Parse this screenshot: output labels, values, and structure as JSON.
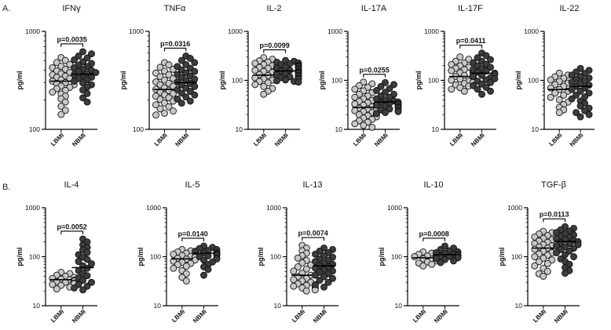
{
  "row_labels": [
    "A.",
    "B."
  ],
  "colors": {
    "lbmi_fill": "#c8c8c8",
    "nbmi_fill": "#3d3d3d",
    "point_stroke": "#111111"
  },
  "chart_data": [
    {
      "type": "scatter",
      "title": "IFNγ",
      "ylabel": "pg/ml",
      "scale": "log",
      "ylim": [
        100,
        1000
      ],
      "yticks": [
        100,
        1000
      ],
      "categories": [
        "LBMI",
        "NBMI"
      ],
      "annotation": "p=0.0035",
      "series": [
        {
          "name": "LBMI",
          "median": 310,
          "values": [
            540,
            505,
            480,
            460,
            440,
            425,
            410,
            395,
            380,
            370,
            360,
            350,
            340,
            330,
            320,
            310,
            300,
            292,
            285,
            276,
            268,
            260,
            250,
            240,
            230,
            218,
            205,
            190,
            172,
            156,
            142
          ]
        },
        {
          "name": "NBMI",
          "median": 365,
          "values": [
            620,
            590,
            560,
            535,
            512,
            490,
            470,
            452,
            438,
            425,
            412,
            400,
            390,
            380,
            370,
            360,
            350,
            340,
            330,
            320,
            310,
            298,
            285,
            270,
            252,
            232,
            210,
            190
          ]
        }
      ]
    },
    {
      "type": "scatter",
      "title": "TNFα",
      "ylabel": "pg/ml",
      "scale": "log",
      "ylim": [
        100,
        1000
      ],
      "yticks": [
        100,
        1000
      ],
      "categories": [
        "LBMI",
        "NBMI"
      ],
      "annotation": "p=0.0316",
      "series": [
        {
          "name": "LBMI",
          "median": 255,
          "values": [
            480,
            455,
            430,
            410,
            392,
            375,
            360,
            345,
            330,
            318,
            305,
            295,
            285,
            275,
            265,
            256,
            248,
            240,
            232,
            225,
            218,
            210,
            202,
            194,
            186,
            178,
            170,
            162,
            154,
            146,
            140
          ]
        },
        {
          "name": "NBMI",
          "median": 300,
          "values": [
            560,
            530,
            505,
            480,
            458,
            438,
            420,
            404,
            390,
            376,
            362,
            350,
            338,
            326,
            315,
            304,
            294,
            284,
            274,
            264,
            254,
            244,
            234,
            224,
            214,
            204,
            194,
            185
          ]
        }
      ]
    },
    {
      "type": "scatter",
      "title": "IL-2",
      "ylabel": "pg/ml",
      "scale": "log",
      "ylim": [
        10,
        1000
      ],
      "yticks": [
        10,
        100,
        1000
      ],
      "categories": [
        "LBMI",
        "NBMI"
      ],
      "annotation": "p=0.0099",
      "series": [
        {
          "name": "LBMI",
          "median": 128,
          "values": [
            290,
            270,
            250,
            235,
            222,
            210,
            200,
            192,
            184,
            176,
            168,
            160,
            152,
            145,
            138,
            131,
            125,
            119,
            113,
            107,
            101,
            95,
            89,
            82,
            75,
            68,
            60,
            52
          ]
        },
        {
          "name": "NBMI",
          "median": 155,
          "values": [
            255,
            245,
            235,
            226,
            218,
            210,
            203,
            196,
            190,
            184,
            178,
            172,
            166,
            160,
            155,
            150,
            145,
            140,
            135,
            130,
            126,
            122,
            118,
            114,
            110,
            106,
            102,
            98,
            95,
            92
          ]
        }
      ]
    },
    {
      "type": "scatter",
      "title": "IL-17A",
      "ylabel": "pg/ml",
      "scale": "log",
      "ylim": [
        10,
        1000
      ],
      "yticks": [
        10,
        100,
        1000
      ],
      "categories": [
        "LBMI",
        "NBMI"
      ],
      "annotation": "p=0.0255",
      "series": [
        {
          "name": "LBMI",
          "median": 28,
          "values": [
            92,
            85,
            78,
            72,
            66,
            61,
            56,
            52,
            48,
            45,
            42,
            39,
            37,
            35,
            33,
            31,
            29,
            28,
            27,
            26,
            25,
            24,
            23,
            22,
            21,
            20,
            19,
            18,
            17,
            16,
            15,
            14,
            13,
            12,
            11
          ]
        },
        {
          "name": "NBMI",
          "median": 36,
          "values": [
            90,
            82,
            75,
            68,
            62,
            57,
            52,
            48,
            45,
            42,
            40,
            38,
            36,
            35,
            34,
            33,
            32,
            31,
            30,
            29,
            28,
            27,
            26,
            25,
            24,
            23,
            22,
            21
          ]
        }
      ]
    },
    {
      "type": "scatter",
      "title": "IL-17F",
      "ylabel": "pg/ml",
      "scale": "log",
      "ylim": [
        10,
        1000
      ],
      "yticks": [
        10,
        100,
        1000
      ],
      "categories": [
        "LBMI",
        "NBMI"
      ],
      "annotation": "p=0.0411",
      "series": [
        {
          "name": "LBMI",
          "median": 120,
          "values": [
            300,
            270,
            245,
            225,
            210,
            198,
            186,
            176,
            166,
            158,
            150,
            143,
            137,
            131,
            126,
            121,
            116,
            111,
            106,
            101,
            96,
            91,
            86,
            81,
            76,
            71,
            66,
            60
          ]
        },
        {
          "name": "NBMI",
          "median": 140,
          "values": [
            360,
            320,
            290,
            265,
            245,
            228,
            212,
            198,
            185,
            174,
            164,
            155,
            147,
            140,
            133,
            126,
            120,
            114,
            108,
            102,
            96,
            90,
            84,
            78,
            72,
            66,
            60,
            52
          ]
        }
      ]
    },
    {
      "type": "scatter",
      "title": "IL-22",
      "ylabel": "pg/ml",
      "scale": "log",
      "ylim": [
        10,
        1000
      ],
      "yticks": [
        10,
        100,
        1000
      ],
      "categories": [
        "LBMI",
        "NBMI"
      ],
      "annotation": "",
      "series": [
        {
          "name": "LBMI",
          "median": 65,
          "values": [
            140,
            128,
            118,
            110,
            102,
            95,
            88,
            82,
            76,
            70,
            65,
            60,
            55,
            50,
            45,
            40,
            36,
            32,
            28,
            25,
            22
          ]
        },
        {
          "name": "NBMI",
          "median": 75,
          "values": [
            175,
            160,
            148,
            138,
            128,
            120,
            112,
            105,
            98,
            92,
            86,
            80,
            75,
            70,
            65,
            60,
            55,
            50,
            46,
            42,
            38,
            34,
            30,
            27,
            24,
            22,
            20,
            18
          ]
        }
      ]
    },
    {
      "type": "scatter",
      "title": "IL-4",
      "ylabel": "pg/ml",
      "scale": "log",
      "ylim": [
        10,
        1000
      ],
      "yticks": [
        10,
        100,
        1000
      ],
      "categories": [
        "LBMI",
        "NBMI"
      ],
      "annotation": "p=0.0052",
      "series": [
        {
          "name": "LBMI",
          "median": 34,
          "values": [
            48,
            45,
            42,
            40,
            38,
            36,
            35,
            34,
            33,
            32,
            31,
            30,
            29,
            28,
            27,
            26,
            24,
            22
          ]
        },
        {
          "name": "NBMI",
          "median": 60,
          "values": [
            230,
            200,
            175,
            155,
            138,
            122,
            110,
            98,
            88,
            80,
            72,
            65,
            58,
            52,
            46,
            41,
            37,
            33,
            30,
            27,
            25,
            23,
            21
          ]
        }
      ]
    },
    {
      "type": "scatter",
      "title": "IL-5",
      "ylabel": "pg/ml",
      "scale": "log",
      "ylim": [
        10,
        1000
      ],
      "yticks": [
        10,
        100,
        1000
      ],
      "categories": [
        "LBMI",
        "NBMI"
      ],
      "annotation": "p=0.0140",
      "series": [
        {
          "name": "LBMI",
          "median": 90,
          "values": [
            140,
            132,
            125,
            118,
            112,
            106,
            101,
            97,
            93,
            89,
            85,
            81,
            77,
            73,
            69,
            64,
            58,
            52,
            45,
            38,
            32
          ]
        },
        {
          "name": "NBMI",
          "median": 118,
          "values": [
            165,
            155,
            147,
            140,
            134,
            129,
            124,
            120,
            116,
            112,
            108,
            104,
            100,
            95,
            90,
            85,
            78,
            70,
            62,
            55,
            42
          ]
        }
      ]
    },
    {
      "type": "scatter",
      "title": "IL-13",
      "ylabel": "pg/ml",
      "scale": "log",
      "ylim": [
        10,
        1000
      ],
      "yticks": [
        10,
        100,
        1000
      ],
      "categories": [
        "LBMI",
        "NBMI"
      ],
      "annotation": "p=0.0074",
      "series": [
        {
          "name": "LBMI",
          "median": 42,
          "values": [
            170,
            150,
            132,
            118,
            105,
            94,
            84,
            75,
            68,
            62,
            56,
            51,
            46,
            42,
            39,
            36,
            34,
            32,
            30,
            28,
            26,
            25,
            24,
            23,
            22,
            21,
            20
          ]
        },
        {
          "name": "NBMI",
          "median": 65,
          "values": [
            150,
            140,
            130,
            121,
            113,
            105,
            98,
            91,
            85,
            80,
            75,
            70,
            66,
            62,
            58,
            54,
            51,
            48,
            45,
            42,
            39,
            36,
            33,
            30,
            27,
            24
          ]
        }
      ]
    },
    {
      "type": "scatter",
      "title": "IL-10",
      "ylabel": "pg/ml",
      "scale": "log",
      "ylim": [
        10,
        1000
      ],
      "yticks": [
        10,
        100,
        1000
      ],
      "categories": [
        "LBMI",
        "NBMI"
      ],
      "annotation": "p=0.0008",
      "series": [
        {
          "name": "LBMI",
          "median": 95,
          "values": [
            125,
            118,
            112,
            107,
            103,
            100,
            97,
            94,
            91,
            88,
            85,
            82,
            78,
            74,
            70,
            65
          ]
        },
        {
          "name": "NBMI",
          "median": 110,
          "values": [
            165,
            150,
            140,
            132,
            126,
            121,
            117,
            113,
            110,
            107,
            104,
            101,
            98,
            95,
            91,
            87,
            82,
            76
          ]
        }
      ]
    },
    {
      "type": "scatter",
      "title": "TGF-β",
      "ylabel": "pg/ml",
      "scale": "log",
      "ylim": [
        10,
        1000
      ],
      "yticks": [
        10,
        100,
        1000
      ],
      "categories": [
        "LBMI",
        "NBMI"
      ],
      "annotation": "p=0.0113",
      "series": [
        {
          "name": "LBMI",
          "median": 150,
          "values": [
            330,
            310,
            290,
            270,
            252,
            236,
            222,
            209,
            197,
            186,
            176,
            167,
            158,
            150,
            142,
            135,
            128,
            121,
            114,
            107,
            100,
            93,
            86,
            79,
            72,
            65,
            58,
            50,
            45,
            40
          ]
        },
        {
          "name": "NBMI",
          "median": 205,
          "values": [
            410,
            380,
            355,
            332,
            312,
            294,
            278,
            263,
            249,
            236,
            224,
            213,
            203,
            194,
            185,
            176,
            167,
            158,
            149,
            140,
            130,
            120,
            110,
            100,
            90,
            80,
            70,
            60,
            52,
            46
          ]
        }
      ]
    }
  ]
}
